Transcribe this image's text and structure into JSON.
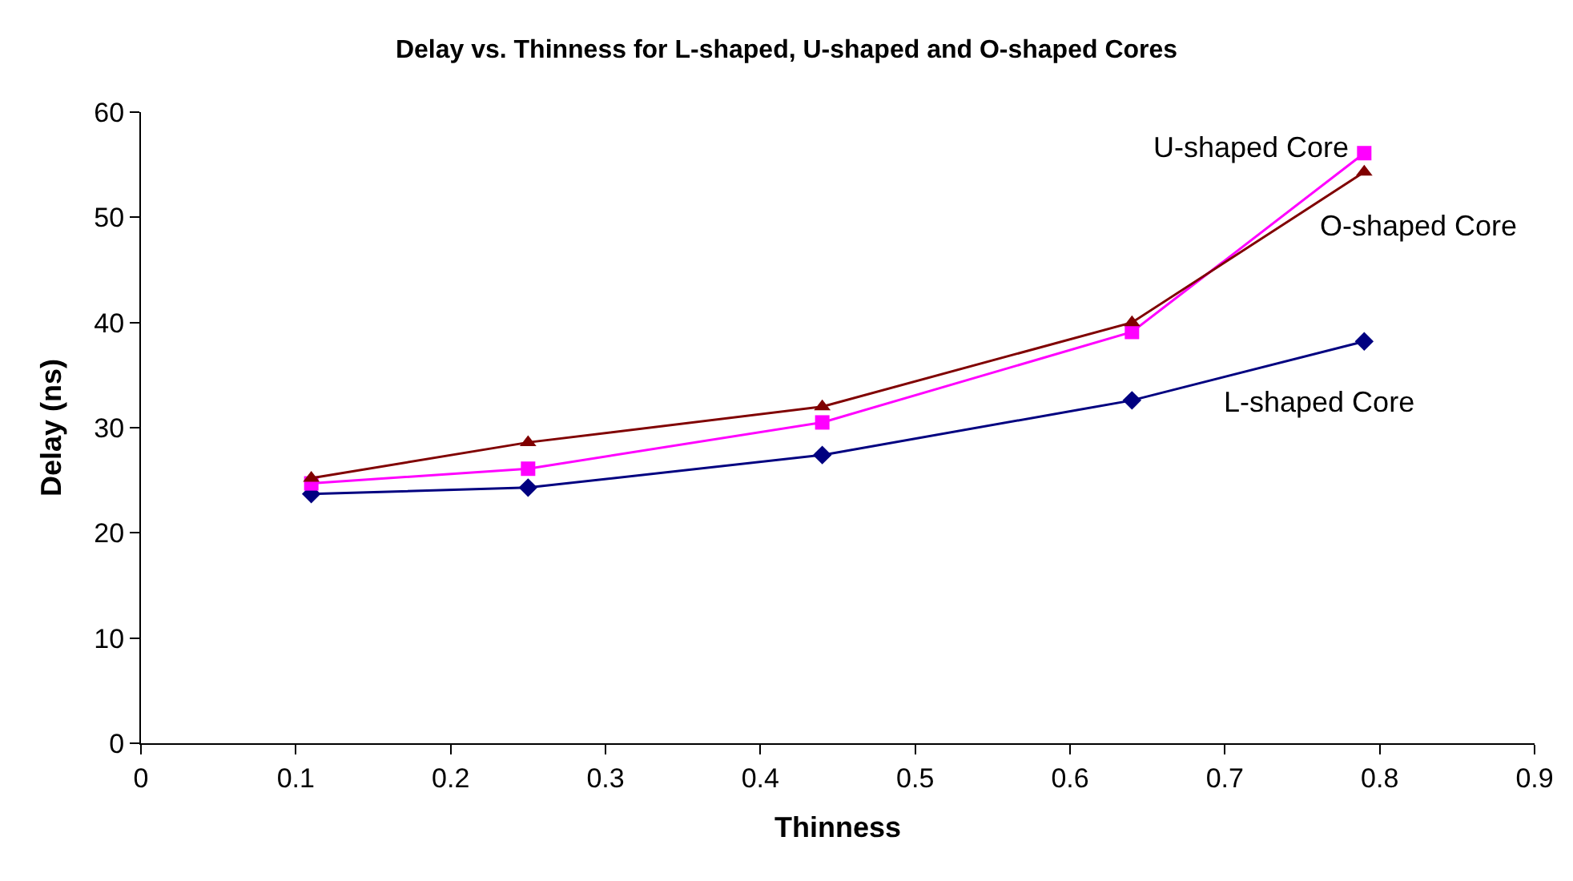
{
  "chart_data": {
    "type": "line",
    "title": "Delay vs. Thinness for L-shaped, U-shaped and O-shaped Cores",
    "xlabel": "Thinness",
    "ylabel": "Delay (ns)",
    "x": [
      0.11,
      0.25,
      0.44,
      0.64,
      0.79
    ],
    "series": [
      {
        "name": "L-shaped Core",
        "color": "#000080",
        "marker": "diamond",
        "values": [
          23.7,
          24.3,
          27.4,
          32.6,
          38.2
        ]
      },
      {
        "name": "U-shaped Core",
        "color": "#ff00ff",
        "marker": "square",
        "values": [
          24.7,
          26.1,
          30.5,
          39.1,
          56.1
        ]
      },
      {
        "name": "O-shaped Core",
        "color": "#800000",
        "marker": "triangle",
        "values": [
          25.2,
          28.6,
          32.0,
          40.0,
          54.3
        ]
      }
    ],
    "xlim": [
      0,
      0.9
    ],
    "xticks": [
      0,
      0.1,
      0.2,
      0.3,
      0.4,
      0.5,
      0.6,
      0.7,
      0.8,
      0.9
    ],
    "ylim": [
      0,
      60
    ],
    "yticks": [
      0,
      10,
      20,
      30,
      40,
      50,
      60
    ],
    "grid": false,
    "legend": false,
    "line_style": "solid"
  }
}
